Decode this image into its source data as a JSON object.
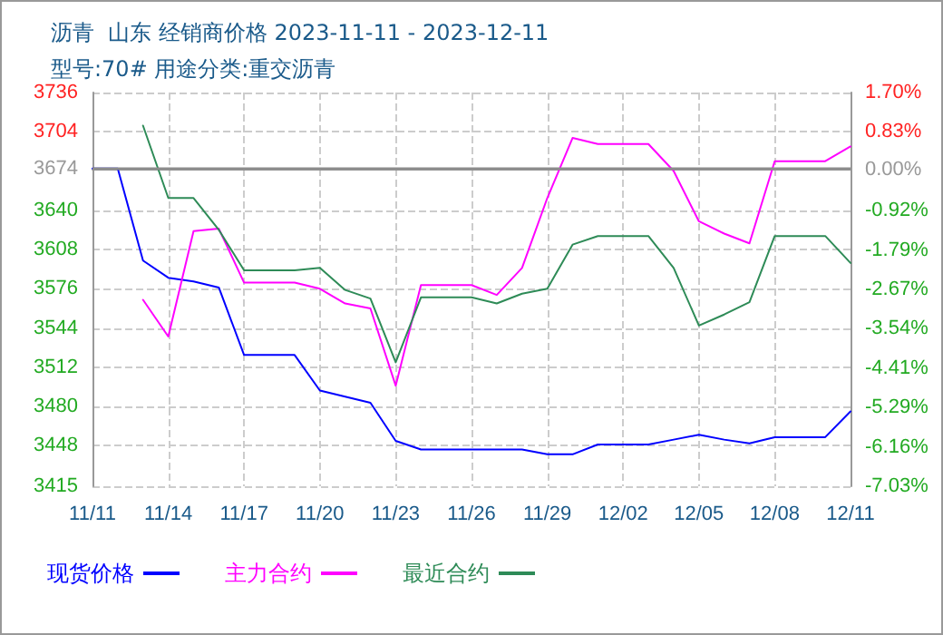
{
  "chart_data": {
    "type": "line",
    "title": "沥青  山东 经销商价格 2023-11-11 - 2023-12-11",
    "subtitle": "型号:70# 用途分类:重交沥青",
    "x": [
      "2023-11-11",
      "2023-11-12",
      "2023-11-13",
      "2023-11-14",
      "2023-11-15",
      "2023-11-16",
      "2023-11-17",
      "2023-11-18",
      "2023-11-19",
      "2023-11-20",
      "2023-11-21",
      "2023-11-22",
      "2023-11-23",
      "2023-11-24",
      "2023-11-25",
      "2023-11-26",
      "2023-11-27",
      "2023-11-28",
      "2023-11-29",
      "2023-11-30",
      "2023-12-01",
      "2023-12-02",
      "2023-12-03",
      "2023-12-04",
      "2023-12-05",
      "2023-12-06",
      "2023-12-07",
      "2023-12-08",
      "2023-12-09",
      "2023-12-10",
      "2023-12-11"
    ],
    "series": [
      {
        "name": "现货价格",
        "color": "#0000ff",
        "values": [
          3674,
          3674,
          3599,
          3585,
          3582,
          3577,
          3522,
          3522,
          3522,
          3493,
          3488,
          3483,
          3452,
          3445,
          3445,
          3445,
          3445,
          3445,
          3441,
          3441,
          3449,
          3449,
          3449,
          3453,
          3457,
          3453,
          3450,
          3455,
          3455,
          3455,
          3476
        ]
      },
      {
        "name": "主力合约",
        "color": "#ff00ff",
        "values": [
          null,
          null,
          3567,
          3537,
          3623,
          3625,
          3581,
          3581,
          3581,
          3576,
          3564,
          3560,
          3497,
          3579,
          3579,
          3579,
          3571,
          3593,
          3650,
          3699,
          3694,
          3694,
          3694,
          3672,
          3631,
          3621,
          3613,
          3680,
          3680,
          3680,
          3692
        ]
      },
      {
        "name": "最近合约",
        "color": "#2e8b57",
        "values": [
          null,
          null,
          3709,
          3650,
          3650,
          3624,
          3591,
          3591,
          3591,
          3593,
          3575,
          3568,
          3516,
          3569,
          3569,
          3569,
          3564,
          3572,
          3576,
          3612,
          3619,
          3619,
          3619,
          3593,
          3546,
          3555,
          3565,
          3619,
          3619,
          3619,
          3597
        ]
      }
    ],
    "xlim": [
      "2023-11-11",
      "2023-12-11"
    ],
    "xticks": [
      {
        "value": "2023-11-11",
        "label": "11/11"
      },
      {
        "value": "2023-11-14",
        "label": "11/14"
      },
      {
        "value": "2023-11-17",
        "label": "11/17"
      },
      {
        "value": "2023-11-20",
        "label": "11/20"
      },
      {
        "value": "2023-11-23",
        "label": "11/23"
      },
      {
        "value": "2023-11-26",
        "label": "11/26"
      },
      {
        "value": "2023-11-29",
        "label": "11/29"
      },
      {
        "value": "2023-12-02",
        "label": "12/02"
      },
      {
        "value": "2023-12-05",
        "label": "12/05"
      },
      {
        "value": "2023-12-08",
        "label": "12/08"
      },
      {
        "value": "2023-12-11",
        "label": "12/11"
      }
    ],
    "ylim": [
      3415,
      3736
    ],
    "yticks": [
      3415,
      3448,
      3480,
      3512,
      3544,
      3576,
      3608,
      3640,
      3674,
      3704,
      3736
    ],
    "y2lim": [
      -7.03,
      1.7
    ],
    "y2ticks": [
      {
        "value": -7.03,
        "label": "-7.03%"
      },
      {
        "value": -6.16,
        "label": "-6.16%"
      },
      {
        "value": -5.29,
        "label": "-5.29%"
      },
      {
        "value": -4.41,
        "label": "-4.41%"
      },
      {
        "value": -3.54,
        "label": "-3.54%"
      },
      {
        "value": -2.67,
        "label": "-2.67%"
      },
      {
        "value": -1.79,
        "label": "-1.79%"
      },
      {
        "value": -0.92,
        "label": "-0.92%"
      },
      {
        "value": 0,
        "label": "0.00%"
      },
      {
        "value": 0.83,
        "label": "0.83%"
      },
      {
        "value": 1.7,
        "label": "1.70%"
      }
    ],
    "ref_lines": [
      {
        "axis": "y",
        "value": 3674,
        "color": "#8c8c8c",
        "line_style": "solid"
      }
    ],
    "grid": true,
    "legend": "bottom left",
    "marker": "none",
    "line_style": "solid"
  }
}
